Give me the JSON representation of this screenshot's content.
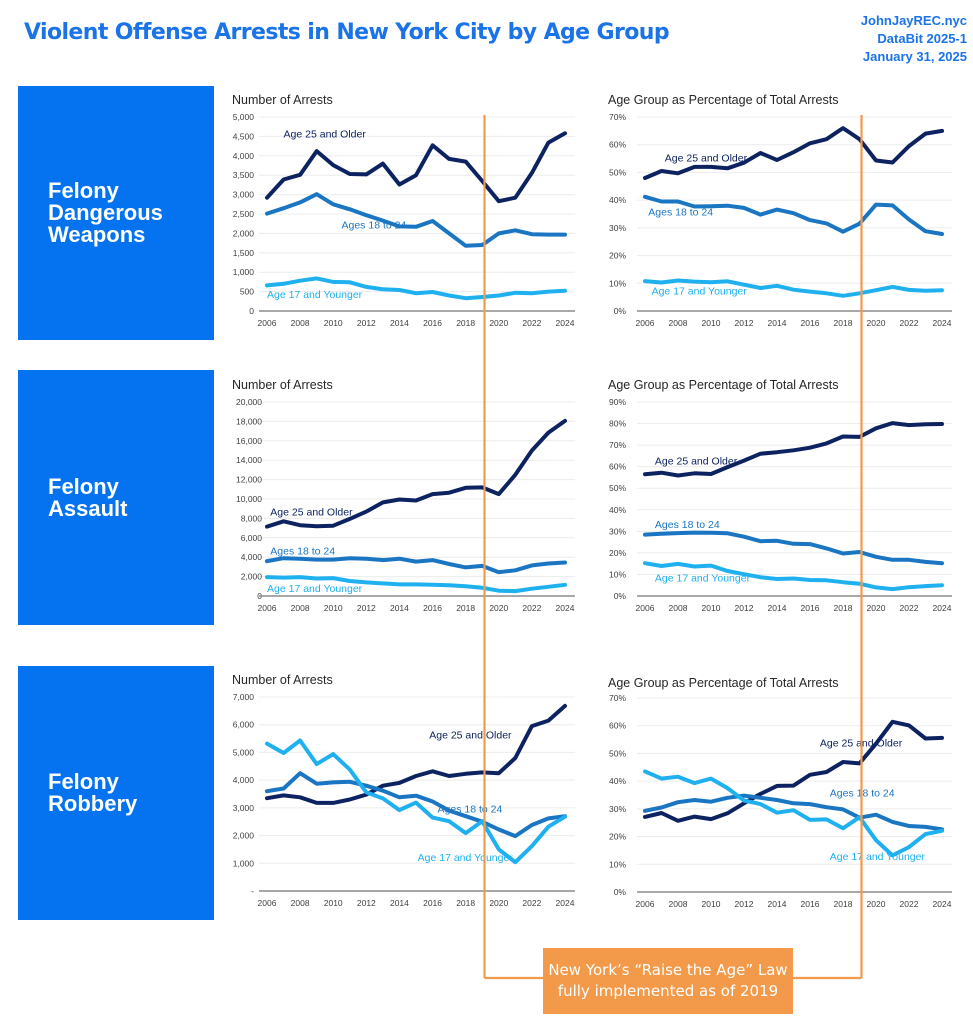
{
  "header": {
    "title": "Violent Offense Arrests in New York City by Age Group",
    "site": "JohnJayREC.nyc",
    "series_id": "DataBit 2025-1",
    "date": "January 31, 2025"
  },
  "panels": [
    {
      "lines": [
        "Felony",
        "Dangerous",
        "Weapons"
      ]
    },
    {
      "lines": [
        "Felony",
        "Assault"
      ]
    },
    {
      "lines": [
        "Felony",
        "Robbery"
      ]
    }
  ],
  "colors": {
    "age25": "#0d2260",
    "age18": "#1a75c2",
    "age17": "#1fb0ef",
    "panel": "#0573f0",
    "title": "#1a73e8",
    "annotation": "#f29a49"
  },
  "annotation": {
    "line1": "New York’s “Raise the Age” Law",
    "line2": "fully implemented as of 2019",
    "year": 2019
  },
  "chart_data": [
    {
      "id": "weapons-count",
      "type": "line",
      "title": "Number of Arrests",
      "xlabel": "",
      "ylabel": "",
      "x": [
        2006,
        2007,
        2008,
        2009,
        2010,
        2011,
        2012,
        2013,
        2014,
        2015,
        2016,
        2017,
        2018,
        2019,
        2020,
        2021,
        2022,
        2023,
        2024
      ],
      "xticks": [
        "2006",
        "2008",
        "2010",
        "2012",
        "2014",
        "2016",
        "2018",
        "2020",
        "2022",
        "2024"
      ],
      "ylim": [
        0,
        5000
      ],
      "yticks": [
        0,
        500,
        1000,
        1500,
        2000,
        2500,
        3000,
        3500,
        4000,
        4500,
        5000
      ],
      "ytick_labels": [
        "0",
        "500",
        "1,000",
        "1,500",
        "2,000",
        "2,500",
        "3,000",
        "3,500",
        "4,000",
        "4,500",
        "5,000"
      ],
      "grid": true,
      "series": [
        {
          "name": "Age 25 and Older",
          "key": "age25",
          "values": [
            2920,
            3390,
            3510,
            4120,
            3760,
            3530,
            3520,
            3800,
            3260,
            3500,
            4270,
            3920,
            3850,
            3350,
            2830,
            2920,
            3560,
            4340,
            4580
          ]
        },
        {
          "name": "Ages 18 to 24",
          "key": "age18",
          "values": [
            2510,
            2650,
            2800,
            3010,
            2750,
            2620,
            2470,
            2330,
            2180,
            2170,
            2320,
            2000,
            1680,
            1700,
            2000,
            2080,
            1980,
            1970,
            1970
          ]
        },
        {
          "name": "Age 17 and Younger",
          "key": "age17",
          "values": [
            660,
            700,
            780,
            840,
            750,
            740,
            620,
            560,
            540,
            460,
            490,
            400,
            330,
            360,
            400,
            470,
            460,
            500,
            520
          ]
        }
      ],
      "label_years": {
        "age25": [
          2007.0,
          4470
        ],
        "age18": [
          2010.5,
          2120
        ],
        "age17": [
          2006.0,
          330
        ]
      }
    },
    {
      "id": "weapons-pct",
      "type": "line",
      "title": "Age Group as Percentage of Total Arrests",
      "xlabel": "",
      "ylabel": "",
      "x": [
        2006,
        2007,
        2008,
        2009,
        2010,
        2011,
        2012,
        2013,
        2014,
        2015,
        2016,
        2017,
        2018,
        2019,
        2020,
        2021,
        2022,
        2023,
        2024
      ],
      "xticks": [
        "2006",
        "2008",
        "2010",
        "2012",
        "2014",
        "2016",
        "2018",
        "2020",
        "2022",
        "2024"
      ],
      "ylim": [
        0,
        70
      ],
      "yticks": [
        0,
        10,
        20,
        30,
        40,
        50,
        60,
        70
      ],
      "ytick_labels": [
        "0%",
        "10%",
        "20%",
        "30%",
        "40%",
        "50%",
        "60%",
        "70%"
      ],
      "grid": true,
      "series": [
        {
          "name": "Age 25 and Older",
          "key": "age25",
          "values": [
            48,
            50.5,
            49.7,
            52,
            52,
            51.5,
            53.5,
            57,
            54.5,
            57.3,
            60.5,
            62,
            66,
            62,
            54.3,
            53.6,
            59.5,
            64,
            65
          ]
        },
        {
          "name": "Ages 18 to 24",
          "key": "age18",
          "values": [
            41.2,
            39.5,
            39.5,
            37.7,
            37.8,
            38,
            37.2,
            34.8,
            36.6,
            35.3,
            32.8,
            31.6,
            28.6,
            31.5,
            38.4,
            38.1,
            33,
            28.8,
            27.8
          ]
        },
        {
          "name": "Age 17 and Younger",
          "key": "age17",
          "values": [
            10.8,
            10.3,
            11,
            10.6,
            10.4,
            10.7,
            9.5,
            8.3,
            9.1,
            7.7,
            7,
            6.4,
            5.5,
            6.4,
            7.5,
            8.7,
            7.6,
            7.3,
            7.5
          ]
        }
      ],
      "label_years": {
        "age25": [
          2007.2,
          54
        ],
        "age18": [
          2006.2,
          34.5
        ],
        "age17": [
          2006.4,
          5.9
        ]
      }
    },
    {
      "id": "assault-count",
      "type": "line",
      "title": "Number of Arrests",
      "xlabel": "",
      "ylabel": "",
      "x": [
        2006,
        2007,
        2008,
        2009,
        2010,
        2011,
        2012,
        2013,
        2014,
        2015,
        2016,
        2017,
        2018,
        2019,
        2020,
        2021,
        2022,
        2023,
        2024
      ],
      "xticks": [
        "2006",
        "2008",
        "2010",
        "2012",
        "2014",
        "2016",
        "2018",
        "2020",
        "2022",
        "2024"
      ],
      "ylim": [
        0,
        20000
      ],
      "yticks": [
        0,
        2000,
        4000,
        6000,
        8000,
        10000,
        12000,
        14000,
        16000,
        18000,
        20000
      ],
      "ytick_labels": [
        "0",
        "2,000",
        "4,000",
        "6,000",
        "8,000",
        "10,000",
        "12,000",
        "14,000",
        "16,000",
        "18,000",
        "20,000"
      ],
      "grid": true,
      "series": [
        {
          "name": "Age 25 and Older",
          "key": "age25",
          "values": [
            7150,
            7700,
            7300,
            7200,
            7250,
            7950,
            8700,
            9650,
            9950,
            9850,
            10500,
            10650,
            11150,
            11200,
            10500,
            12500,
            15000,
            16850,
            18050
          ]
        },
        {
          "name": "Ages 18 to 24",
          "key": "age18",
          "values": [
            3600,
            3900,
            3850,
            3750,
            3750,
            3900,
            3850,
            3700,
            3850,
            3550,
            3700,
            3300,
            2950,
            3100,
            2450,
            2650,
            3150,
            3350,
            3450
          ]
        },
        {
          "name": "Age 17 and Younger",
          "key": "age17",
          "values": [
            1950,
            1900,
            1950,
            1800,
            1850,
            1550,
            1400,
            1300,
            1200,
            1200,
            1150,
            1100,
            1000,
            850,
            550,
            500,
            750,
            950,
            1150
          ]
        }
      ],
      "label_years": {
        "age25": [
          2006.2,
          8300
        ],
        "age18": [
          2006.2,
          4300
        ],
        "age17": [
          2006.0,
          400
        ]
      }
    },
    {
      "id": "assault-pct",
      "type": "line",
      "title": "Age Group as Percentage of Total Arrests",
      "xlabel": "",
      "ylabel": "",
      "x": [
        2006,
        2007,
        2008,
        2009,
        2010,
        2011,
        2012,
        2013,
        2014,
        2015,
        2016,
        2017,
        2018,
        2019,
        2020,
        2021,
        2022,
        2023,
        2024
      ],
      "xticks": [
        "2006",
        "2008",
        "2010",
        "2012",
        "2014",
        "2016",
        "2018",
        "2020",
        "2022",
        "2024"
      ],
      "ylim": [
        0,
        90
      ],
      "yticks": [
        0,
        10,
        20,
        30,
        40,
        50,
        60,
        70,
        80,
        90
      ],
      "ytick_labels": [
        "0%",
        "10%",
        "20%",
        "30%",
        "40%",
        "50%",
        "60%",
        "70%",
        "80%",
        "90%"
      ],
      "grid": true,
      "series": [
        {
          "name": "Age 25 and Older",
          "key": "age25",
          "values": [
            56.5,
            57.2,
            55.9,
            56.9,
            56.6,
            59.8,
            62.8,
            66,
            66.7,
            67.6,
            68.8,
            70.8,
            74,
            73.8,
            77.8,
            80.2,
            79.3,
            79.7,
            79.8
          ]
        },
        {
          "name": "Ages 18 to 24",
          "key": "age18",
          "values": [
            28.5,
            28.9,
            29.2,
            29.4,
            29.3,
            29.1,
            27.5,
            25.4,
            25.6,
            24.2,
            24.1,
            22.1,
            19.7,
            20.4,
            18.2,
            16.8,
            16.8,
            15.8,
            15.2
          ]
        },
        {
          "name": "Age 17 and Younger",
          "key": "age17",
          "values": [
            15.2,
            13.9,
            14.9,
            13.7,
            14.1,
            11.6,
            10.1,
            8.7,
            7.9,
            8.1,
            7.4,
            7.3,
            6.4,
            5.7,
            4,
            3.2,
            4.1,
            4.6,
            5
          ]
        },
        {
          "name": "_spacer",
          "key": "none",
          "values": []
        }
      ],
      "label_years": {
        "age25": [
          2006.6,
          61
        ],
        "age18": [
          2006.6,
          31.5
        ],
        "age17": [
          2006.6,
          6.8
        ]
      }
    },
    {
      "id": "robbery-count",
      "type": "line",
      "title": "Number of Arrests",
      "xlabel": "",
      "ylabel": "",
      "x": [
        2006,
        2007,
        2008,
        2009,
        2010,
        2011,
        2012,
        2013,
        2014,
        2015,
        2016,
        2017,
        2018,
        2019,
        2020,
        2021,
        2022,
        2023,
        2024
      ],
      "xticks": [
        "2006",
        "2008",
        "2010",
        "2012",
        "2014",
        "2016",
        "2018",
        "2020",
        "2022",
        "2024"
      ],
      "ylim": [
        0,
        7000
      ],
      "yticks": [
        0,
        1000,
        2000,
        3000,
        4000,
        5000,
        6000,
        7000
      ],
      "ytick_labels": [
        "-",
        "1,000",
        "2,000",
        "3,000",
        "4,000",
        "5,000",
        "6,000",
        "7,000"
      ],
      "grid": true,
      "series": [
        {
          "name": "Age 25 and Older",
          "key": "age25",
          "values": [
            3350,
            3450,
            3380,
            3180,
            3180,
            3300,
            3480,
            3800,
            3900,
            4150,
            4320,
            4150,
            4230,
            4280,
            4250,
            4800,
            5950,
            6150,
            6680
          ]
        },
        {
          "name": "Ages 18 to 24",
          "key": "age18",
          "values": [
            3600,
            3700,
            4250,
            3870,
            3920,
            3940,
            3800,
            3620,
            3380,
            3440,
            3230,
            2900,
            2700,
            2500,
            2220,
            1980,
            2380,
            2620,
            2700
          ]
        },
        {
          "name": "Age 17 and Younger",
          "key": "age17",
          "values": [
            5320,
            4980,
            5430,
            4580,
            4940,
            4380,
            3560,
            3340,
            2920,
            3190,
            2650,
            2520,
            2090,
            2520,
            1500,
            1040,
            1620,
            2320,
            2680
          ]
        }
      ],
      "label_years": {
        "age25": [
          2015.8,
          5500
        ],
        "age18": [
          2016.3,
          2830
        ],
        "age17": [
          2015.1,
          1090
        ]
      }
    },
    {
      "id": "robbery-pct",
      "type": "line",
      "title": "Age Group as Percentage of Total Arrests",
      "xlabel": "",
      "ylabel": "",
      "x": [
        2006,
        2007,
        2008,
        2009,
        2010,
        2011,
        2012,
        2013,
        2014,
        2015,
        2016,
        2017,
        2018,
        2019,
        2020,
        2021,
        2022,
        2023,
        2024
      ],
      "xticks": [
        "2006",
        "2008",
        "2010",
        "2012",
        "2014",
        "2016",
        "2018",
        "2020",
        "2022",
        "2024"
      ],
      "ylim": [
        0,
        70
      ],
      "yticks": [
        0,
        10,
        20,
        30,
        40,
        50,
        60,
        70
      ],
      "ytick_labels": [
        "0%",
        "10%",
        "20%",
        "30%",
        "40%",
        "50%",
        "60%",
        "70%"
      ],
      "grid": true,
      "series": [
        {
          "name": "Age 25 and Older",
          "key": "age25",
          "values": [
            27.1,
            28.5,
            25.7,
            27.2,
            26.3,
            28.4,
            32,
            35.4,
            38.3,
            38.4,
            42.3,
            43.3,
            46.9,
            46.4,
            53.5,
            61.4,
            60.1,
            55.4,
            55.6
          ]
        },
        {
          "name": "Ages 18 to 24",
          "key": "age18",
          "values": [
            29.3,
            30.5,
            32.4,
            33.2,
            32.6,
            34,
            34.8,
            34,
            33.2,
            32,
            31.7,
            30.6,
            29.8,
            26.8,
            27.9,
            25.3,
            23.8,
            23.5,
            22.6
          ]
        },
        {
          "name": "Age 17 and Younger",
          "key": "age17",
          "values": [
            43.5,
            40.9,
            41.6,
            39.3,
            40.9,
            37.5,
            33,
            31.7,
            28.6,
            29.5,
            26,
            26.2,
            23,
            27,
            18.7,
            13.2,
            16.2,
            20.9,
            22.1
          ]
        }
      ],
      "label_years": {
        "age25": [
          2016.6,
          52.5
        ],
        "age18": [
          2017.2,
          34.5
        ],
        "age17": [
          2017.2,
          11.5
        ]
      }
    }
  ]
}
